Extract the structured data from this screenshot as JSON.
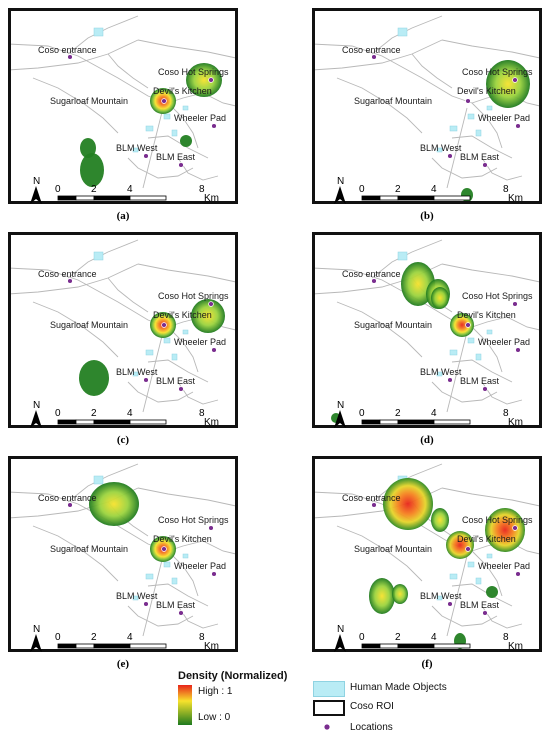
{
  "labels": {
    "coso_entrance": "Coso entrance",
    "coso_hot_springs": "Coso Hot Springs",
    "sugarloaf_mountain": "Sugarloaf Mountain",
    "devils_kitchen": "Devil's Kitchen",
    "wheeler_pad": "Wheeler Pad",
    "blm_west": "BLM West",
    "blm_east": "BLM East"
  },
  "scalebar": {
    "ticks": [
      "0",
      "2",
      "4",
      "8"
    ],
    "unit": "Km"
  },
  "north_arrow": "N",
  "panels": [
    {
      "caption": "(a)"
    },
    {
      "caption": "(b)"
    },
    {
      "caption": "(c)"
    },
    {
      "caption": "(d)"
    },
    {
      "caption": "(e)"
    },
    {
      "caption": "(f)"
    }
  ],
  "legend": {
    "density_title": "Density (Normalized)",
    "high": "High : 1",
    "low": "Low : 0",
    "human_made": "Human Made Objects",
    "roi": "Coso ROI",
    "locations": "Locations"
  },
  "colors": {
    "high": "#e8241a",
    "mid": "#f7e22c",
    "low": "#1f7a1f",
    "human_made": "#b9ecf5",
    "location": "#7a2d8f"
  }
}
